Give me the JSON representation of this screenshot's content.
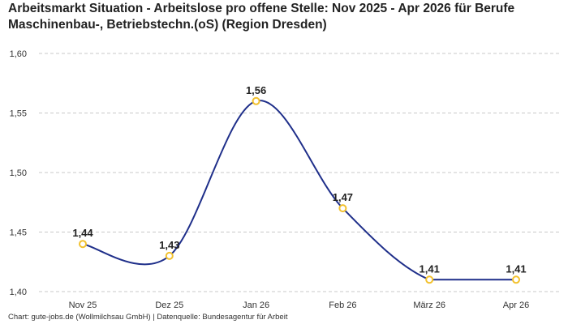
{
  "chart_data": {
    "type": "line",
    "title": "Arbeitsmarkt Situation - Arbeitslose pro offene Stelle: Nov 2025 - Apr 2026 für Berufe Maschinenbau-, Betriebstechn.(oS) (Region Dresden)",
    "categories": [
      "Nov 25",
      "Dez 25",
      "Jan 26",
      "Feb 26",
      "März 26",
      "Apr 26"
    ],
    "values": [
      1.44,
      1.43,
      1.56,
      1.47,
      1.41,
      1.41
    ],
    "data_labels": [
      "1,44",
      "1,43",
      "1,56",
      "1,47",
      "1,41",
      "1,41"
    ],
    "yticks": [
      1.4,
      1.45,
      1.5,
      1.55,
      1.6
    ],
    "ytick_labels": [
      "1,40",
      "1,45",
      "1,50",
      "1,55",
      "1,60"
    ],
    "ylim": [
      1.4,
      1.6
    ],
    "xlabel": "",
    "ylabel": "",
    "grid": true,
    "line_color": "#1f2f8a",
    "marker_color": "#f2c12e"
  },
  "footer": "Chart: gute-jobs.de (Wollmilchsau GmbH) | Datenquelle: Bundesagentur für Arbeit"
}
